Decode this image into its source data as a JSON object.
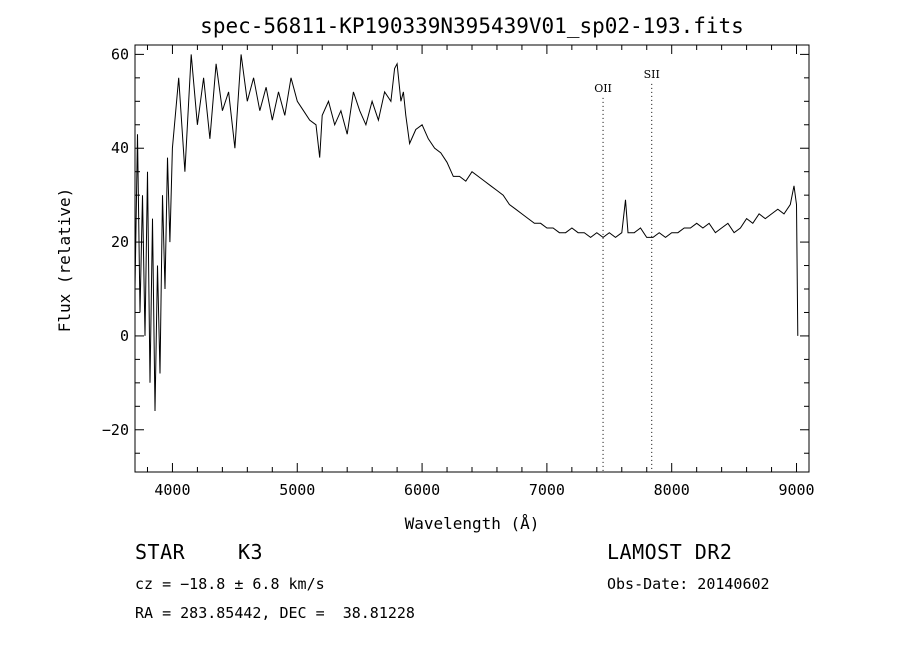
{
  "chart_data": {
    "type": "line",
    "title": "spec-56811-KP190339N395439V01_sp02-193.fits",
    "xlabel": "Wavelength (Å)",
    "ylabel": "Flux (relative)",
    "xlim": [
      3700,
      9100
    ],
    "ylim": [
      -29,
      62
    ],
    "x_ticks": [
      4000,
      5000,
      6000,
      7000,
      8000,
      9000
    ],
    "y_ticks": [
      -20,
      0,
      20,
      40,
      60
    ],
    "grid": false,
    "series": [
      {
        "name": "",
        "x": [
          3700,
          3720,
          3740,
          3760,
          3780,
          3800,
          3820,
          3840,
          3860,
          3880,
          3900,
          3920,
          3940,
          3960,
          3980,
          4000,
          4050,
          4100,
          4150,
          4200,
          4250,
          4300,
          4350,
          4400,
          4450,
          4500,
          4550,
          4600,
          4650,
          4700,
          4750,
          4800,
          4850,
          4900,
          4950,
          5000,
          5050,
          5100,
          5150,
          5180,
          5200,
          5250,
          5300,
          5350,
          5400,
          5450,
          5500,
          5550,
          5600,
          5650,
          5700,
          5750,
          5780,
          5800,
          5830,
          5850,
          5870,
          5900,
          5950,
          6000,
          6050,
          6100,
          6150,
          6200,
          6250,
          6300,
          6350,
          6400,
          6450,
          6500,
          6550,
          6600,
          6650,
          6700,
          6750,
          6800,
          6850,
          6900,
          6950,
          7000,
          7050,
          7100,
          7150,
          7200,
          7250,
          7300,
          7350,
          7400,
          7450,
          7500,
          7550,
          7600,
          7630,
          7650,
          7700,
          7750,
          7800,
          7850,
          7900,
          7950,
          8000,
          8050,
          8100,
          8150,
          8200,
          8250,
          8300,
          8350,
          8400,
          8450,
          8500,
          8550,
          8600,
          8650,
          8700,
          8750,
          8800,
          8850,
          8900,
          8950,
          8980,
          9000,
          9010
        ],
        "values": [
          10,
          43,
          5,
          30,
          0,
          35,
          -10,
          25,
          -16,
          15,
          -8,
          30,
          10,
          38,
          20,
          40,
          55,
          35,
          60,
          45,
          55,
          42,
          58,
          48,
          52,
          40,
          60,
          50,
          55,
          48,
          53,
          46,
          52,
          47,
          55,
          50,
          48,
          46,
          45,
          38,
          47,
          50,
          45,
          48,
          43,
          52,
          48,
          45,
          50,
          46,
          52,
          50,
          57,
          58,
          50,
          52,
          47,
          41,
          44,
          45,
          42,
          40,
          39,
          37,
          34,
          34,
          33,
          35,
          34,
          33,
          32,
          31,
          30,
          28,
          27,
          26,
          25,
          24,
          24,
          23,
          23,
          22,
          22,
          23,
          22,
          22,
          21,
          22,
          21,
          22,
          21,
          22,
          29,
          22,
          22,
          23,
          21,
          21,
          22,
          21,
          22,
          22,
          23,
          23,
          24,
          23,
          24,
          22,
          23,
          24,
          22,
          23,
          25,
          24,
          26,
          25,
          26,
          27,
          26,
          28,
          32,
          28,
          0
        ]
      }
    ],
    "annotations": [
      {
        "label": "OII",
        "x": 7450,
        "label_y": 52
      },
      {
        "label": "SII",
        "x": 7840,
        "label_y": 55
      }
    ]
  },
  "info": {
    "object_class": "STAR",
    "subclass": "K3",
    "redshift": "cz = −18.8 ± 6.8 km/s",
    "coords": "RA = 283.85442, DEC =  38.81228",
    "survey": "LAMOST DR2",
    "obs_date": "Obs-Date: 20140602"
  }
}
